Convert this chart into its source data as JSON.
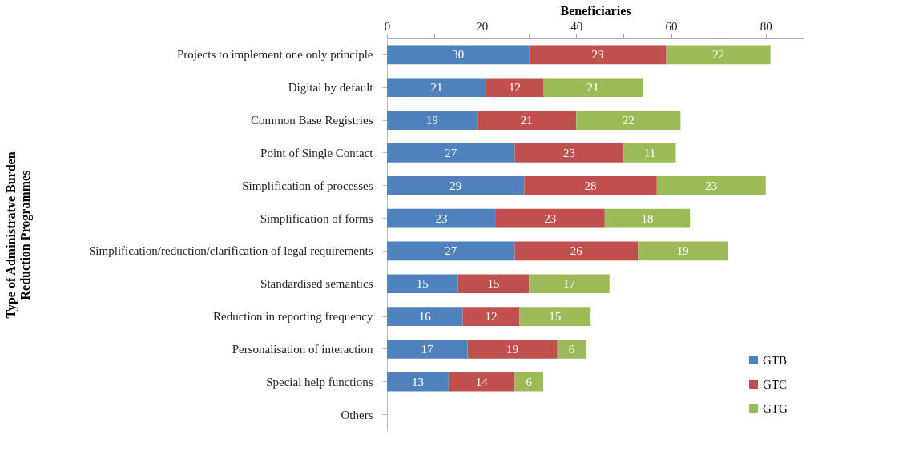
{
  "chart_data": {
    "type": "bar",
    "orientation": "horizontal",
    "stacked": true,
    "xlabel": "Beneficiaries",
    "ylabel": "Type of Administratve Burden Reduction Programmes",
    "categories": [
      "Projects to implement one only principle",
      "Digital by default",
      "Common Base Registries",
      "Point of Single Contact",
      "Simplification of processes",
      "Simplification of forms",
      "Simplification/reduction/clarification of legal requirements",
      "Standardised semantics",
      "Reduction in reporting frequency",
      "Personalisation of interaction",
      "Special help functions",
      "Others"
    ],
    "series": [
      {
        "name": "GTB",
        "color": "#4f81bd",
        "values": [
          30,
          21,
          19,
          27,
          29,
          23,
          27,
          15,
          16,
          17,
          13,
          null
        ]
      },
      {
        "name": "GTC",
        "color": "#c0504d",
        "values": [
          29,
          12,
          21,
          23,
          28,
          23,
          26,
          15,
          12,
          19,
          14,
          null
        ]
      },
      {
        "name": "GTG",
        "color": "#9bbb59",
        "values": [
          22,
          21,
          22,
          11,
          23,
          18,
          19,
          17,
          15,
          6,
          6,
          null
        ]
      }
    ],
    "xlim": [
      0,
      88
    ],
    "xticks": [
      0,
      {
        "value": 10,
        "label": null
      },
      20,
      {
        "value": 30,
        "label": null
      },
      40,
      {
        "value": 50,
        "label": null
      },
      60,
      {
        "value": 70,
        "label": null
      },
      80
    ],
    "grid": false,
    "legend": "bottom right",
    "data_labels": true
  }
}
